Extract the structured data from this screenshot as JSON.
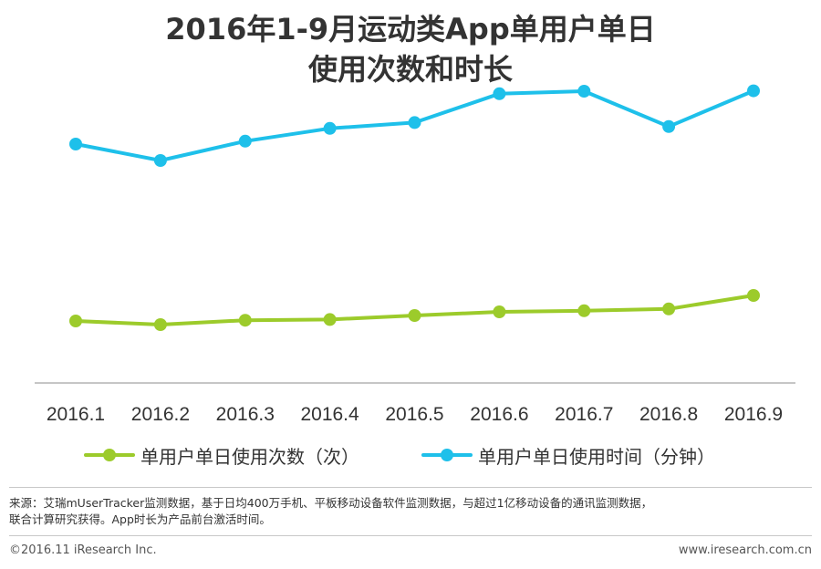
{
  "title": {
    "line1": "2016年1-9月运动类App单用户单日",
    "line2": "使用次数和时长"
  },
  "chart_data": {
    "type": "line",
    "categories": [
      "2016.1",
      "2016.2",
      "2016.3",
      "2016.4",
      "2016.5",
      "2016.6",
      "2016.7",
      "2016.8",
      "2016.9"
    ],
    "ylim": [
      0,
      100
    ],
    "grid": false,
    "legend_position": "bottom",
    "series": [
      {
        "name": "单用户单日使用次数（次）",
        "color": "#9ccb2b",
        "values": [
          17,
          16,
          17.2,
          17.4,
          18.5,
          19.5,
          19.8,
          20.3,
          24
        ]
      },
      {
        "name": "单用户单日使用时间（分钟）",
        "color": "#1ec0ea",
        "values": [
          65.5,
          61,
          66.3,
          69.8,
          71.4,
          79.3,
          80,
          70.3,
          80.1
        ]
      }
    ]
  },
  "source": {
    "line1": "来源：艾瑞mUserTracker监测数据，基于日均400万手机、平板移动设备软件监测数据，与超过1亿移动设备的通讯监测数据，",
    "line2": "联合计算研究获得。App时长为产品前台激活时间。"
  },
  "footer": {
    "copyright": "©2016.11 iResearch Inc.",
    "website": "www.iresearch.com.cn"
  }
}
